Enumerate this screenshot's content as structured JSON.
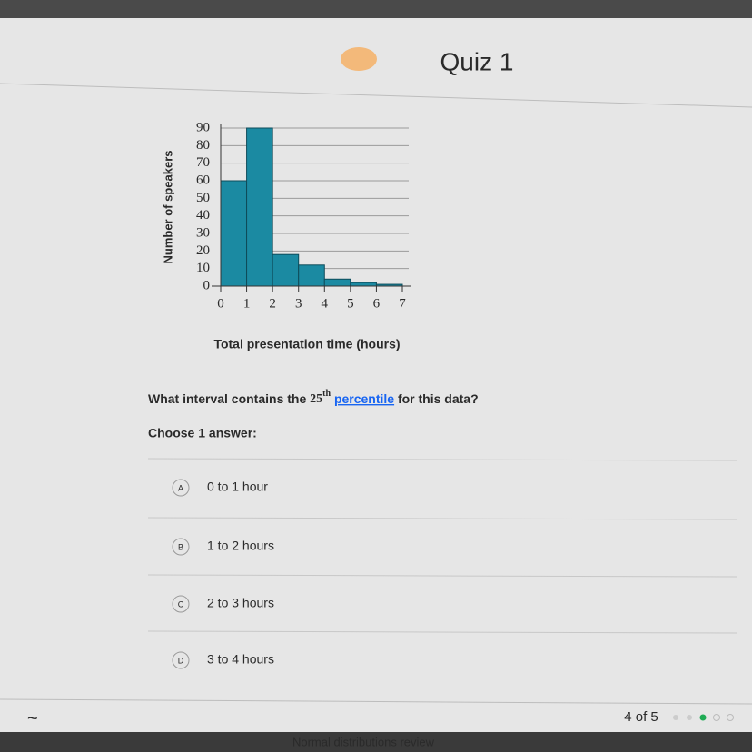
{
  "header": {
    "title": "Quiz 1"
  },
  "chart_data": {
    "type": "histogram",
    "ylabel": "Number of speakers",
    "xlabel": "Total presentation time (hours)",
    "bins": [
      0,
      1,
      2,
      3,
      4,
      5,
      6,
      7
    ],
    "values": [
      60,
      90,
      18,
      12,
      4,
      2,
      1
    ],
    "color": "#1b8aa2",
    "xlim": [
      0,
      7
    ],
    "xticks": [
      0,
      1,
      2,
      3,
      4,
      5,
      6,
      7
    ],
    "ylim": [
      0,
      90
    ],
    "yticks": [
      0,
      10,
      20,
      30,
      40,
      50,
      60,
      70,
      80,
      90
    ],
    "grid": true
  },
  "question": {
    "before": "What interval contains the",
    "number": "25",
    "sup": "th",
    "link": "percentile",
    "after": "for this data?"
  },
  "prompt": "Choose 1 answer:",
  "choices": [
    {
      "letter": "A",
      "text": "0 to 1 hour"
    },
    {
      "letter": "B",
      "text": "1 to 2 hours"
    },
    {
      "letter": "C",
      "text": "2 to 3 hours"
    },
    {
      "letter": "D",
      "text": "3 to 4 hours"
    }
  ],
  "footer": {
    "progress": "4 of 5",
    "taskbar": "Normal distributions review"
  }
}
